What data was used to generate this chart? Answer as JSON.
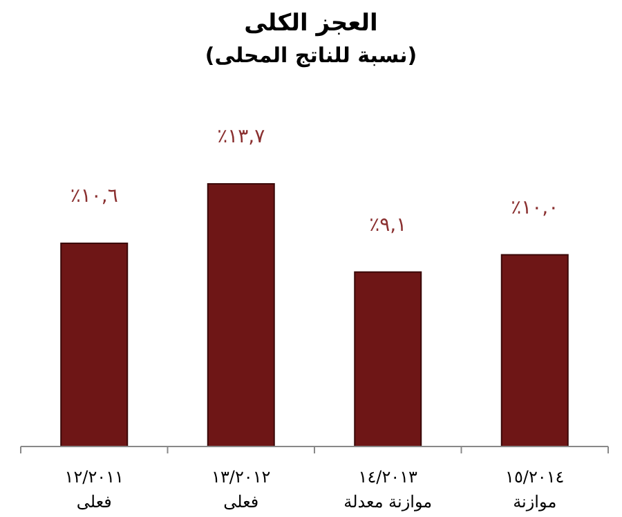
{
  "chart_data": {
    "type": "bar",
    "title": "العجز الكلى",
    "subtitle": "(نسبة للناتج المحلى)",
    "categories": [
      "١٢/٢٠١١\nفعلى",
      "١٣/٢٠١٢\nفعلى",
      "١٤/٢٠١٣\nموازنة معدلة",
      "١٥/٢٠١٤\nموازنة"
    ],
    "values": [
      10.6,
      13.7,
      9.1,
      10.0
    ],
    "value_labels": [
      "٪١٠,٦",
      "٪١٣,٧",
      "٪٩,١",
      "٪١٠,٠"
    ],
    "color": "#6e1616"
  }
}
